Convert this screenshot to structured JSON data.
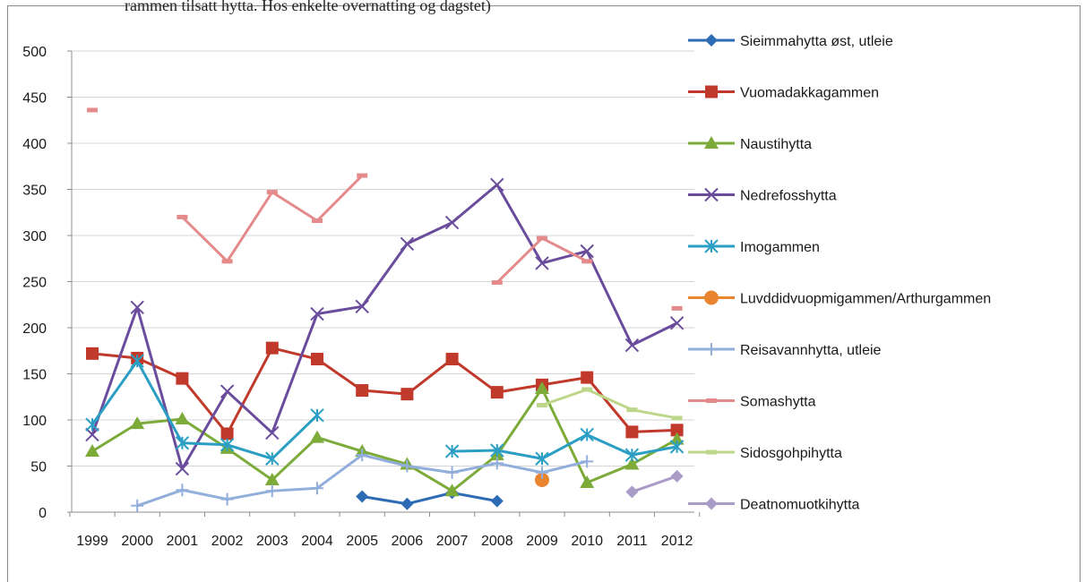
{
  "header_fragment": "rammen tilsatt hytta. Hos enkelte overnatting og dagstet)",
  "chart_data": {
    "type": "line",
    "title": "",
    "xlabel": "",
    "ylabel": "",
    "ylim": [
      0,
      500
    ],
    "yticks": [
      0,
      50,
      100,
      150,
      200,
      250,
      300,
      350,
      400,
      450,
      500
    ],
    "grid": true,
    "legend_position": "right",
    "x": [
      "1999",
      "2000",
      "2001",
      "2002",
      "2003",
      "2004",
      "2005",
      "2006",
      "2007",
      "2008",
      "2009",
      "2010",
      "2011",
      "2012"
    ],
    "series": [
      {
        "name": "Sieimmahytta øst, utleie",
        "color": "#2e6bb5",
        "marker": "diamond",
        "values": [
          null,
          null,
          null,
          null,
          null,
          null,
          17,
          9,
          21,
          12,
          null,
          null,
          null,
          null
        ]
      },
      {
        "name": "Vuomadakkagammen",
        "color": "#c0392b",
        "marker": "square",
        "values": [
          172,
          167,
          145,
          85,
          178,
          166,
          132,
          128,
          166,
          130,
          138,
          146,
          87,
          89
        ]
      },
      {
        "name": "Naustihytta",
        "color": "#7cab3a",
        "marker": "triangle",
        "values": [
          66,
          96,
          101,
          69,
          35,
          81,
          66,
          52,
          23,
          62,
          134,
          32,
          52,
          79
        ]
      },
      {
        "name": "Nedrefosshytta",
        "color": "#6a4c9c",
        "marker": "x",
        "values": [
          84,
          222,
          47,
          131,
          86,
          215,
          223,
          291,
          314,
          355,
          270,
          283,
          181,
          205
        ]
      },
      {
        "name": "Imogammen",
        "color": "#2b9ec4",
        "marker": "star",
        "values": [
          95,
          164,
          75,
          73,
          58,
          105,
          null,
          null,
          66,
          67,
          58,
          84,
          62,
          71
        ]
      },
      {
        "name": "Luvddidvuopmigammen/Arthurgammen",
        "color": "#e8852e",
        "marker": "circle",
        "values": [
          null,
          null,
          null,
          null,
          null,
          null,
          null,
          null,
          null,
          null,
          35,
          null,
          null,
          null
        ]
      },
      {
        "name": "Reisavannhytta, utleie",
        "color": "#92aedb",
        "marker": "plus",
        "values": [
          null,
          7,
          24,
          14,
          23,
          26,
          62,
          50,
          43,
          53,
          43,
          55,
          null,
          null
        ]
      },
      {
        "name": "Somashytta",
        "color": "#e48a8a",
        "marker": "dash",
        "values": [
          436,
          null,
          320,
          272,
          347,
          316,
          365,
          null,
          null,
          249,
          297,
          272,
          null,
          221
        ]
      },
      {
        "name": "Sidosgohpihytta",
        "color": "#bcd68a",
        "marker": "dash",
        "values": [
          null,
          null,
          null,
          null,
          null,
          null,
          null,
          null,
          null,
          null,
          116,
          133,
          111,
          102
        ]
      },
      {
        "name": "Deatnomuotkihytta",
        "color": "#a99cc6",
        "marker": "diamond",
        "values": [
          null,
          null,
          null,
          null,
          null,
          null,
          null,
          null,
          null,
          null,
          null,
          null,
          22,
          39
        ]
      }
    ]
  }
}
